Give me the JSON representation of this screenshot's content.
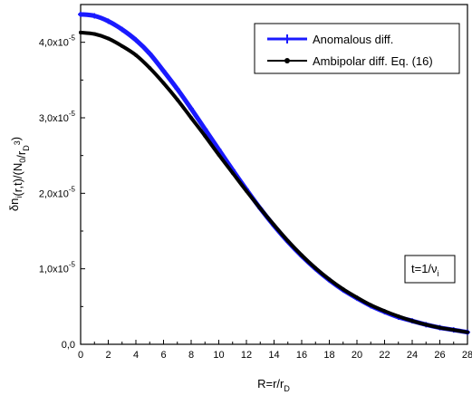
{
  "chart_data": {
    "type": "line",
    "xlim": [
      0,
      28
    ],
    "ylim": [
      0,
      4.5e-05
    ],
    "x_ticks": [
      0,
      2,
      4,
      6,
      8,
      10,
      12,
      14,
      16,
      18,
      20,
      22,
      24,
      26,
      28
    ],
    "x_tick_labels": [
      "0",
      "2",
      "4",
      "6",
      "8",
      "10",
      "12",
      "14",
      "16",
      "18",
      "20",
      "22",
      "24",
      "26",
      "28"
    ],
    "y_ticks": [
      0,
      1e-05,
      2e-05,
      3e-05,
      4e-05
    ],
    "y_tick_mantissa": [
      "0,0",
      "1,0x10",
      "2,0x10",
      "3,0x10",
      "4,0x10"
    ],
    "y_tick_exponent": [
      "",
      "-5",
      "-5",
      "-5",
      "-5"
    ],
    "xlabel": {
      "main": "R=r/r",
      "sub": "D"
    },
    "ylabel": {
      "parts": [
        {
          "t": "δn",
          "sub": false
        },
        {
          "t": "i",
          "sub": true
        },
        {
          "t": "(r,t)/(N",
          "sub": false
        },
        {
          "t": "0",
          "sub": true
        },
        {
          "t": "/r",
          "sub": false
        },
        {
          "t": "D",
          "sub": true
        },
        {
          "t": "3",
          "sup": true
        },
        {
          "t": ")",
          "sub": false
        }
      ]
    },
    "grid": false,
    "legend_position": "top-right",
    "annotation": {
      "main": "t=1/ν",
      "sub": "i"
    },
    "series": [
      {
        "name": "Anomalous diff.",
        "color": "#1a1aff",
        "marker": "plus",
        "x": [
          0,
          1,
          2,
          3,
          4,
          5,
          6,
          7,
          8,
          9,
          10,
          11,
          12,
          13,
          14,
          15,
          16,
          17,
          18,
          19,
          20,
          21,
          22,
          23,
          24,
          25,
          26,
          27,
          28
        ],
        "y": [
          4.37e-05,
          4.35e-05,
          4.28e-05,
          4.17e-05,
          4.03e-05,
          3.85e-05,
          3.62e-05,
          3.38e-05,
          3.12e-05,
          2.85e-05,
          2.58e-05,
          2.31e-05,
          2.05e-05,
          1.8e-05,
          1.57e-05,
          1.36e-05,
          1.17e-05,
          1e-05,
          8.5e-06,
          7.2e-06,
          6.1e-06,
          5.1e-06,
          4.3e-06,
          3.6e-06,
          3.1e-06,
          2.6e-06,
          2.2e-06,
          1.9e-06,
          1.6e-06
        ]
      },
      {
        "name": "Ambipolar diff. Eq. (16)",
        "color": "#000000",
        "marker": "dot",
        "x": [
          0,
          1,
          2,
          3,
          4,
          5,
          6,
          7,
          8,
          9,
          10,
          11,
          12,
          13,
          14,
          15,
          16,
          17,
          18,
          19,
          20,
          21,
          22,
          23,
          24,
          25,
          26,
          27,
          28
        ],
        "y": [
          4.13e-05,
          4.11e-05,
          4.05e-05,
          3.95e-05,
          3.83e-05,
          3.66e-05,
          3.46e-05,
          3.24e-05,
          3e-05,
          2.76e-05,
          2.51e-05,
          2.27e-05,
          2.03e-05,
          1.8e-05,
          1.58e-05,
          1.37e-05,
          1.18e-05,
          1.01e-05,
          8.6e-06,
          7.3e-06,
          6.2e-06,
          5.2e-06,
          4.4e-06,
          3.7e-06,
          3.1e-06,
          2.6e-06,
          2.2e-06,
          1.9e-06,
          1.6e-06
        ]
      }
    ]
  }
}
